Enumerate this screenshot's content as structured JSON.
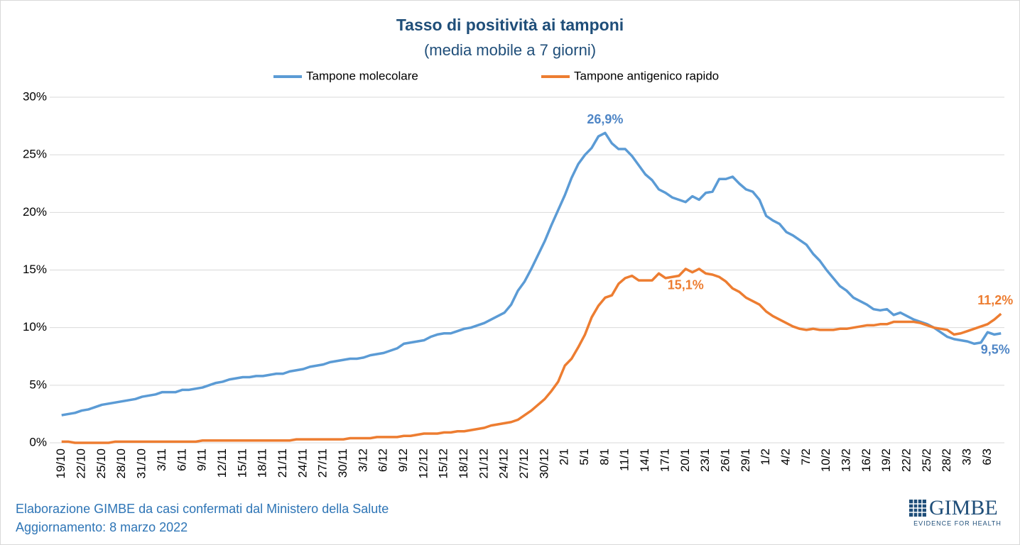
{
  "chart_data": {
    "type": "line",
    "title": "Tasso di positività ai tamponi",
    "subtitle": "(media mobile a 7 giorni)",
    "categories": [
      "19/10",
      null,
      null,
      "22/10",
      null,
      null,
      "25/10",
      null,
      null,
      "28/10",
      null,
      null,
      "31/10",
      null,
      null,
      "3/11",
      null,
      null,
      "6/11",
      null,
      null,
      "9/11",
      null,
      null,
      "12/11",
      null,
      null,
      "15/11",
      null,
      null,
      "18/11",
      null,
      null,
      "21/11",
      null,
      null,
      "24/11",
      null,
      null,
      "27/11",
      null,
      null,
      "30/11",
      null,
      null,
      "3/12",
      null,
      null,
      "6/12",
      null,
      null,
      "9/12",
      null,
      null,
      "12/12",
      null,
      null,
      "15/12",
      null,
      null,
      "18/12",
      null,
      null,
      "21/12",
      null,
      null,
      "24/12",
      null,
      null,
      "27/12",
      null,
      null,
      "30/12",
      null,
      null,
      "2/1",
      null,
      null,
      "5/1",
      null,
      null,
      "8/1",
      null,
      null,
      "11/1",
      null,
      null,
      "14/1",
      null,
      null,
      "17/1",
      null,
      null,
      "20/1",
      null,
      null,
      "23/1",
      null,
      null,
      "26/1",
      null,
      null,
      "29/1",
      null,
      null,
      "1/2",
      null,
      null,
      "4/2",
      null,
      null,
      "7/2",
      null,
      null,
      "10/2",
      null,
      null,
      "13/2",
      null,
      null,
      "16/2",
      null,
      null,
      "19/2",
      null,
      null,
      "22/2",
      null,
      null,
      "25/2",
      null,
      null,
      "28/2",
      null,
      null,
      "3/3",
      null,
      null,
      "6/3",
      null,
      null
    ],
    "series": [
      {
        "name": "Tampone molecolare",
        "color": "#5b9bd5",
        "label_color": "#4f86c6",
        "values": [
          2.4,
          2.5,
          2.6,
          2.8,
          2.9,
          3.1,
          3.3,
          3.4,
          3.5,
          3.6,
          3.7,
          3.8,
          4.0,
          4.1,
          4.2,
          4.4,
          4.4,
          4.4,
          4.6,
          4.6,
          4.7,
          4.8,
          5.0,
          5.2,
          5.3,
          5.5,
          5.6,
          5.7,
          5.7,
          5.8,
          5.8,
          5.9,
          6.0,
          6.0,
          6.2,
          6.3,
          6.4,
          6.6,
          6.7,
          6.8,
          7.0,
          7.1,
          7.2,
          7.3,
          7.3,
          7.4,
          7.6,
          7.7,
          7.8,
          8.0,
          8.2,
          8.6,
          8.7,
          8.8,
          8.9,
          9.2,
          9.4,
          9.5,
          9.5,
          9.7,
          9.9,
          10.0,
          10.2,
          10.4,
          10.7,
          11.0,
          11.3,
          12.0,
          13.2,
          14.0,
          15.1,
          16.3,
          17.5,
          18.9,
          20.2,
          21.5,
          23.0,
          24.2,
          25.0,
          25.6,
          26.6,
          26.9,
          26.0,
          25.5,
          25.5,
          24.9,
          24.1,
          23.3,
          22.8,
          22.0,
          21.7,
          21.3,
          21.1,
          20.9,
          21.4,
          21.1,
          21.7,
          21.8,
          22.9,
          22.9,
          23.1,
          22.5,
          22.0,
          21.8,
          21.1,
          19.7,
          19.3,
          19.0,
          18.3,
          18.0,
          17.6,
          17.2,
          16.4,
          15.8,
          15.0,
          14.3,
          13.6,
          13.2,
          12.6,
          12.3,
          12.0,
          11.6,
          11.5,
          11.6,
          11.1,
          11.3,
          11.0,
          10.7,
          10.5,
          10.3,
          10.0,
          9.6,
          9.2,
          9.0,
          8.9,
          8.8,
          8.6,
          8.7,
          9.6,
          9.4,
          9.5
        ],
        "value_labels": [
          null,
          null,
          null,
          null,
          null,
          null,
          null,
          null,
          null,
          null,
          null,
          null,
          null,
          null,
          null,
          null,
          null,
          null,
          null,
          null,
          null,
          null,
          null,
          null,
          null,
          null,
          null,
          null,
          null,
          null,
          null,
          null,
          null,
          null,
          null,
          null,
          null,
          null,
          null,
          null,
          null,
          null,
          null,
          null,
          null,
          null,
          null,
          null,
          null,
          null,
          null,
          null,
          null,
          null,
          null,
          null,
          null,
          null,
          null,
          null,
          null,
          null,
          null,
          null,
          null,
          null,
          null,
          null,
          null,
          null,
          null,
          null,
          null,
          null,
          null,
          null,
          null,
          null,
          null,
          null,
          null,
          "26,9%",
          null,
          null,
          null,
          null,
          null,
          null,
          null,
          null,
          null,
          null,
          null,
          null,
          null,
          null,
          null,
          null,
          null,
          null,
          null,
          null,
          null,
          null,
          null,
          null,
          null,
          null,
          null,
          null,
          null,
          null,
          null,
          null,
          null,
          null,
          null,
          null,
          null,
          null,
          null,
          null,
          null,
          null,
          null,
          null,
          null,
          null,
          null,
          null,
          null,
          null,
          null,
          null,
          null,
          null,
          null,
          null,
          null,
          null,
          "9,5%"
        ]
      },
      {
        "name": "Tampone antigenico rapido",
        "color": "#ed7d31",
        "label_color": "#ed7d31",
        "values": [
          0.1,
          0.1,
          0,
          0,
          0,
          0,
          0,
          0,
          0.1,
          0.1,
          0.1,
          0.1,
          0.1,
          0.1,
          0.1,
          0.1,
          0.1,
          0.1,
          0.1,
          0.1,
          0.1,
          0.2,
          0.2,
          0.2,
          0.2,
          0.2,
          0.2,
          0.2,
          0.2,
          0.2,
          0.2,
          0.2,
          0.2,
          0.2,
          0.2,
          0.3,
          0.3,
          0.3,
          0.3,
          0.3,
          0.3,
          0.3,
          0.3,
          0.4,
          0.4,
          0.4,
          0.4,
          0.5,
          0.5,
          0.5,
          0.5,
          0.6,
          0.6,
          0.7,
          0.8,
          0.8,
          0.8,
          0.9,
          0.9,
          1.0,
          1.0,
          1.1,
          1.2,
          1.3,
          1.5,
          1.6,
          1.7,
          1.8,
          2.0,
          2.4,
          2.8,
          3.3,
          3.8,
          4.5,
          5.3,
          6.7,
          7.3,
          8.3,
          9.4,
          10.9,
          11.9,
          12.6,
          12.8,
          13.8,
          14.3,
          14.5,
          14.1,
          14.1,
          14.1,
          14.7,
          14.3,
          14.4,
          14.5,
          15.1,
          14.8,
          15.1,
          14.7,
          14.6,
          14.4,
          14.0,
          13.4,
          13.1,
          12.6,
          12.3,
          12.0,
          11.4,
          11.0,
          10.7,
          10.4,
          10.1,
          9.9,
          9.8,
          9.9,
          9.8,
          9.8,
          9.8,
          9.9,
          9.9,
          10.0,
          10.1,
          10.2,
          10.2,
          10.3,
          10.3,
          10.5,
          10.5,
          10.5,
          10.5,
          10.4,
          10.2,
          10.0,
          9.9,
          9.8,
          9.4,
          9.5,
          9.7,
          9.9,
          10.1,
          10.3,
          10.7,
          11.2
        ],
        "value_labels": [
          null,
          null,
          null,
          null,
          null,
          null,
          null,
          null,
          null,
          null,
          null,
          null,
          null,
          null,
          null,
          null,
          null,
          null,
          null,
          null,
          null,
          null,
          null,
          null,
          null,
          null,
          null,
          null,
          null,
          null,
          null,
          null,
          null,
          null,
          null,
          null,
          null,
          null,
          null,
          null,
          null,
          null,
          null,
          null,
          null,
          null,
          null,
          null,
          null,
          null,
          null,
          null,
          null,
          null,
          null,
          null,
          null,
          null,
          null,
          null,
          null,
          null,
          null,
          null,
          null,
          null,
          null,
          null,
          null,
          null,
          null,
          null,
          null,
          null,
          null,
          null,
          null,
          null,
          null,
          null,
          null,
          null,
          null,
          null,
          null,
          null,
          null,
          null,
          null,
          null,
          null,
          null,
          null,
          "15,1%",
          null,
          null,
          null,
          null,
          null,
          null,
          null,
          null,
          null,
          null,
          null,
          null,
          null,
          null,
          null,
          null,
          null,
          null,
          null,
          null,
          null,
          null,
          null,
          null,
          null,
          null,
          null,
          null,
          null,
          null,
          null,
          null,
          null,
          null,
          null,
          null,
          null,
          null,
          null,
          null,
          null,
          null,
          null,
          null,
          null,
          null,
          "11,2%"
        ]
      }
    ],
    "ylim": [
      0,
      30
    ],
    "yticks": [
      {
        "value": 0,
        "label": "0%"
      },
      {
        "value": 5,
        "label": "5%"
      },
      {
        "value": 10,
        "label": "10%"
      },
      {
        "value": 15,
        "label": "15%"
      },
      {
        "value": 20,
        "label": "20%"
      },
      {
        "value": 25,
        "label": "25%"
      },
      {
        "value": 30,
        "label": "30%"
      }
    ],
    "grid": true,
    "legend": "top",
    "source": "Elaborazione GIMBE da casi confermati dal Ministero della Salute",
    "updated": "Aggiornamento: 8 marzo 2022",
    "logo": "GIMBE",
    "logo_tagline": "EVIDENCE FOR HEALTH"
  }
}
